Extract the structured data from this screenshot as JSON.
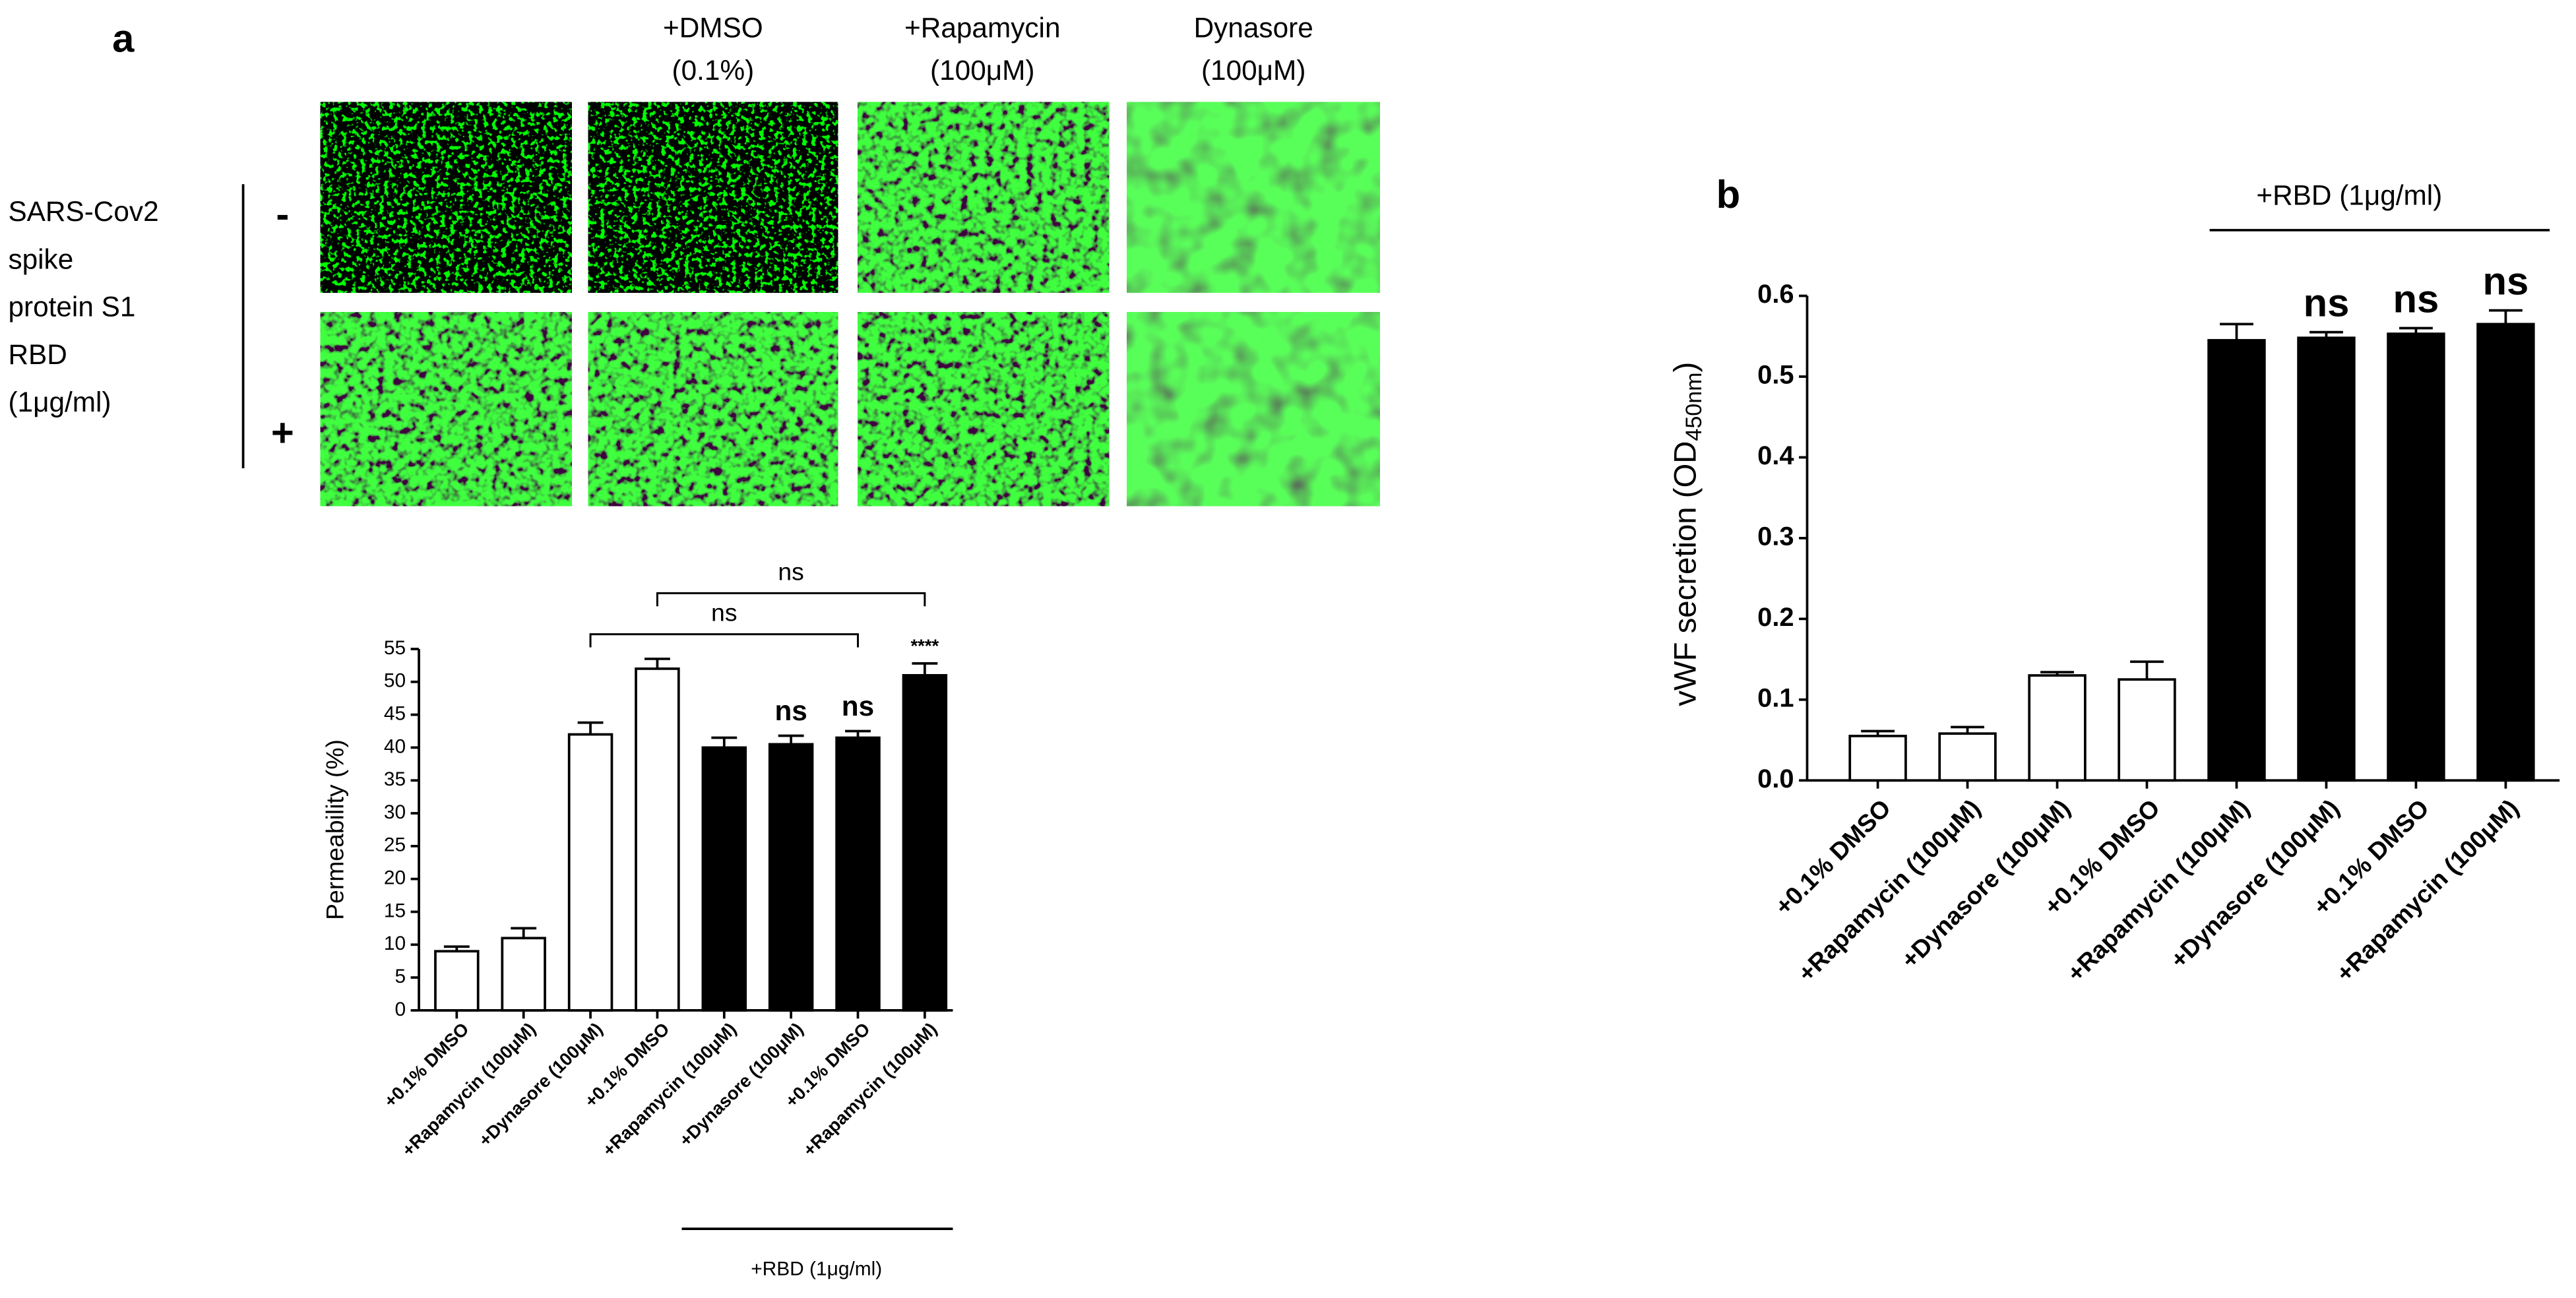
{
  "panel_letters": [
    "a",
    "b"
  ],
  "images": {
    "column_headers": [
      [
        "+DMSO",
        "(0.1%)"
      ],
      [
        "+Rapamycin",
        "(100μM)"
      ],
      [
        "Dynasore",
        "(100μM)"
      ]
    ],
    "row_labels": [
      "-",
      "+"
    ],
    "row_title": [
      "SARS-Cov2",
      "spike",
      "protein S1",
      "RBD",
      "(1μg/ml)"
    ]
  },
  "chart_data": [
    {
      "type": "bar",
      "y_label": "Permeability (%)",
      "categories": [
        "+0.1% DMSO",
        "+Rapamycin (100μM)",
        "+Dynasore (100μM)",
        "+0.1% DMSO",
        "+Rapamycin (100μM)",
        "+Dynasore (100μM)",
        "+0.1% DMSO",
        "+Rapamycin (100μM)"
      ],
      "values": [
        9,
        11,
        42,
        52,
        40,
        40.5,
        41.5,
        51
      ],
      "errors": [
        0.7,
        1.5,
        1.8,
        1.5,
        1.5,
        1.3,
        1,
        1.8
      ],
      "colors": [
        "#ffffff",
        "#ffffff",
        "#ffffff",
        "#ffffff",
        "#000000",
        "#000000",
        "#000000",
        "#000000"
      ],
      "significance": [
        null,
        null,
        null,
        null,
        null,
        "ns",
        "ns",
        "****"
      ],
      "comparisons": [
        "ns",
        "ns"
      ],
      "group_label": "+RBD (1μg/ml)",
      "ylim": [
        0,
        55
      ],
      "yticks": [
        0,
        5,
        10,
        15,
        20,
        25,
        30,
        35,
        40,
        45,
        50,
        55
      ]
    },
    {
      "type": "bar",
      "y_label": {
        "text": "vWF secretion (OD",
        "subscript": "450nm",
        "suffix": ")"
      },
      "categories": [
        "+0.1% DMSO",
        "+Rapamycin (100μM)",
        "+Dynasore (100μM)",
        "+0.1% DMSO",
        "+Rapamycin (100μM)",
        "+Dynasore (100μM)",
        "+0.1% DMSO",
        "+Rapamycin (100μM)"
      ],
      "values": [
        0.055,
        0.058,
        0.13,
        0.125,
        0.545,
        0.548,
        0.553,
        0.565
      ],
      "errors": [
        0.006,
        0.008,
        0.004,
        0.022,
        0.02,
        0.007,
        0.007,
        0.017
      ],
      "colors": [
        "#ffffff",
        "#ffffff",
        "#ffffff",
        "#ffffff",
        "#000000",
        "#000000",
        "#000000",
        "#000000"
      ],
      "significance": [
        null,
        null,
        null,
        null,
        null,
        "ns",
        "ns",
        "ns"
      ],
      "group_label": "+RBD (1μg/ml)",
      "ylim": [
        0,
        0.6
      ],
      "yticks": [
        {
          "value": 0,
          "label": "0.0"
        },
        0.1,
        0.2,
        0.3,
        0.4,
        0.5,
        0.6
      ]
    }
  ]
}
